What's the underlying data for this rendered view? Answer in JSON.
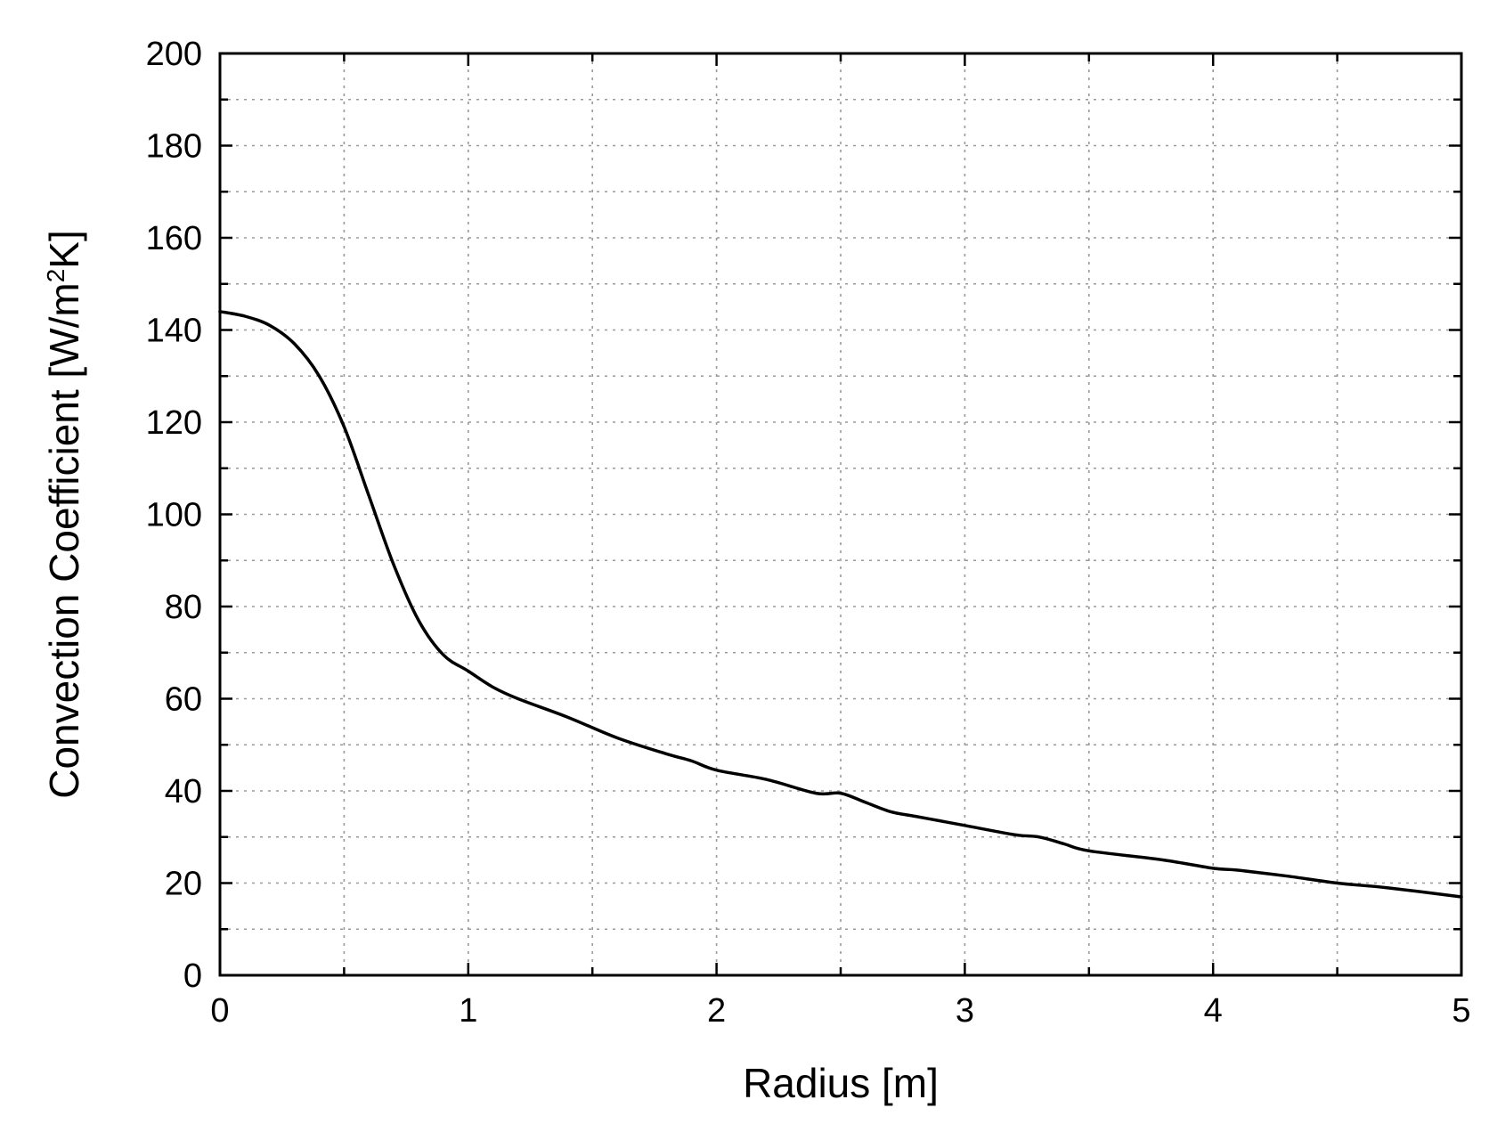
{
  "chart_data": {
    "type": "line",
    "title": "",
    "xlabel": "Radius [m]",
    "ylabel_main": "Convection Coefficient [W/m",
    "ylabel_sup": "2",
    "ylabel_tail": "K]",
    "xlim": [
      0,
      5
    ],
    "ylim": [
      0,
      200
    ],
    "xticks": [
      0,
      1,
      2,
      3,
      4,
      5
    ],
    "xtick_labels": [
      "0",
      "1",
      "2",
      "3",
      "4",
      "5"
    ],
    "yticks": [
      0,
      20,
      40,
      60,
      80,
      100,
      120,
      140,
      160,
      180,
      200
    ],
    "ytick_labels": [
      "0",
      "20",
      "40",
      "60",
      "80",
      "100",
      "120",
      "140",
      "160",
      "180",
      "200"
    ],
    "x_minor_step": 0.5,
    "y_minor_step": 10,
    "grid": true,
    "line_color": "#000000",
    "grid_color": "#9a9a9a",
    "series": [
      {
        "x": [
          0,
          0.1,
          0.2,
          0.3,
          0.4,
          0.5,
          0.6,
          0.7,
          0.8,
          0.9,
          1.0,
          1.1,
          1.2,
          1.4,
          1.6,
          1.8,
          1.9,
          2.0,
          2.2,
          2.4,
          2.5,
          2.6,
          2.7,
          2.8,
          2.9,
          3.0,
          3.2,
          3.3,
          3.4,
          3.5,
          3.8,
          4.0,
          4.1,
          4.3,
          4.5,
          4.7,
          5.0
        ],
        "y": [
          144,
          143,
          141,
          137,
          130,
          119,
          104,
          89,
          77,
          69.5,
          66,
          62.5,
          60,
          56,
          51.5,
          48,
          46.5,
          44.5,
          42.5,
          39.5,
          39.5,
          37.5,
          35.5,
          34.5,
          33.5,
          32.5,
          30.5,
          30,
          28.5,
          27,
          25,
          23.2,
          22.8,
          21.5,
          20,
          19,
          17
        ]
      }
    ]
  }
}
